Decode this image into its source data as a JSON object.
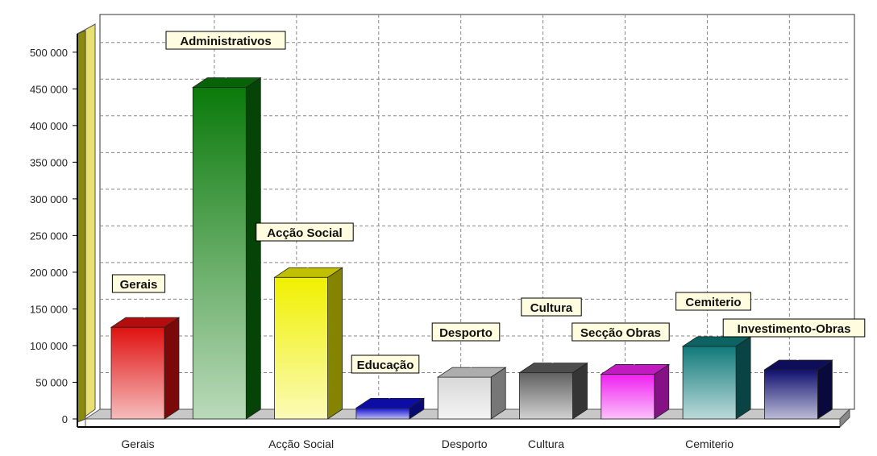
{
  "chart_data": {
    "type": "bar",
    "title": "",
    "xlabel": "",
    "ylabel": "",
    "ylim": [
      0,
      525000
    ],
    "ytick_values": [
      0,
      50000,
      100000,
      150000,
      200000,
      250000,
      300000,
      350000,
      400000,
      450000,
      500000
    ],
    "yticks": [
      "0",
      "50 000",
      "100 000",
      "150 000",
      "200 000",
      "250 000",
      "300 000",
      "350 000",
      "400 000",
      "450 000",
      "500 000"
    ],
    "grid": true,
    "legend": "none",
    "categories": [
      "Gerais",
      "Administrativos",
      "Acção Social",
      "Educação",
      "Desporto",
      "Cultura",
      "Secção Obras",
      "Cemiterio",
      "Investimento-Obras"
    ],
    "axis_category_labels": [
      "Gerais",
      "",
      "Acção Social",
      "",
      "Desporto",
      "Cultura",
      "",
      "Cemiterio",
      ""
    ],
    "values": [
      125000,
      452000,
      193000,
      15000,
      57000,
      63000,
      61000,
      99000,
      67000
    ],
    "colors": [
      "#e01010",
      "#0a7a0a",
      "#f0f000",
      "#1010d0",
      "#d8d8d8",
      "#606060",
      "#f020f0",
      "#107a7a",
      "#101070"
    ]
  }
}
